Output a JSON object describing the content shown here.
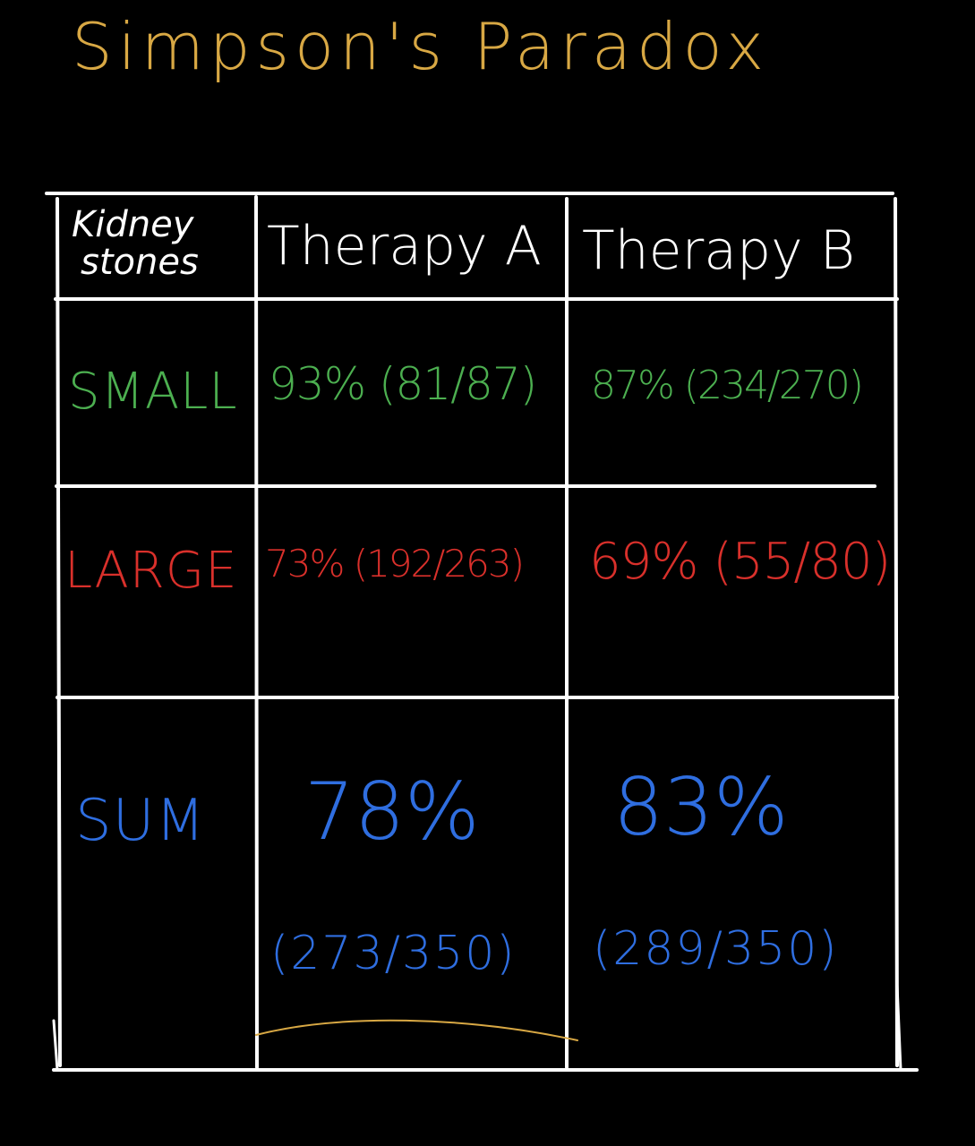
{
  "title": "Simpson's Paradox",
  "colors": {
    "background": "#000000",
    "title": "#d8a844",
    "grid": "#ffffff",
    "header": "#ffffff",
    "small": "#4caf50",
    "large": "#d9302b",
    "sum": "#2f6ee0",
    "underline": "#d8a844"
  },
  "table": {
    "corner_header_line1": "Kidney",
    "corner_header_line2": "stones",
    "column_headers": [
      "Therapy A",
      "Therapy B"
    ],
    "rows": [
      {
        "label": "SMALL",
        "therapy_a": "93% (81/87)",
        "therapy_b": "87% (234/270)"
      },
      {
        "label": "LARGE",
        "therapy_a": "73% (192/263)",
        "therapy_b": "69% (55/80)"
      },
      {
        "label": "SUM",
        "therapy_a_pct": "78%",
        "therapy_a_frac": "(273/350)",
        "therapy_b_pct": "83%",
        "therapy_b_frac": "(289/350)"
      }
    ]
  }
}
